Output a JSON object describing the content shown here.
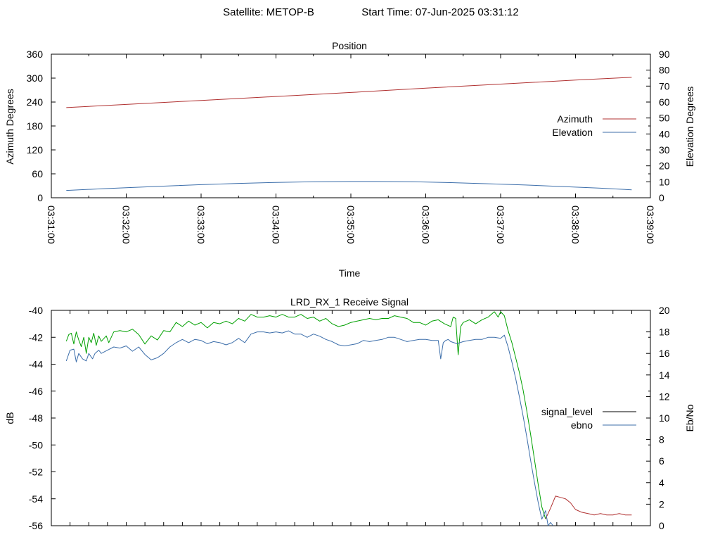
{
  "colors": {
    "azimuth": "#b03030",
    "elevation": "#3c6eaa",
    "signal_green": "#00a000",
    "signal_red": "#b03030",
    "ebno": "#3c6eaa",
    "legend_signal": "#000000",
    "axis": "#000000"
  },
  "header": {
    "satellite_label": "Satellite: METOP-B",
    "start_label": "Start Time: 07-Jun-2025 03:31:12"
  },
  "chart_data": [
    {
      "id": "position",
      "type": "line",
      "title": "Position",
      "xlabel": "Time",
      "ylabel": "Azimuth Degrees",
      "y2label": "Elevation Degrees",
      "xlim": [
        0,
        480
      ],
      "ylim": [
        0,
        360
      ],
      "y2lim": [
        0,
        90
      ],
      "x_ticks": [
        {
          "v": 0,
          "label": "03:31:00"
        },
        {
          "v": 60,
          "label": "03:32:00"
        },
        {
          "v": 120,
          "label": "03:33:00"
        },
        {
          "v": 180,
          "label": "03:34:00"
        },
        {
          "v": 240,
          "label": "03:35:00"
        },
        {
          "v": 300,
          "label": "03:36:00"
        },
        {
          "v": 360,
          "label": "03:37:00"
        },
        {
          "v": 420,
          "label": "03:38:00"
        },
        {
          "v": 480,
          "label": "03:39:00"
        }
      ],
      "y_ticks": [
        "0",
        "60",
        "120",
        "180",
        "240",
        "300",
        "360"
      ],
      "y_tick_values": [
        0,
        60,
        120,
        180,
        240,
        300,
        360
      ],
      "y2_ticks": [
        "0",
        "10",
        "20",
        "30",
        "40",
        "50",
        "60",
        "70",
        "80",
        "90"
      ],
      "y2_tick_values": [
        0,
        10,
        20,
        30,
        40,
        50,
        60,
        70,
        80,
        90
      ],
      "legend": [
        {
          "name": "Azimuth",
          "color_key": "azimuth"
        },
        {
          "name": "Elevation",
          "color_key": "elevation"
        }
      ],
      "legend_position": "right",
      "grid": false,
      "series": [
        {
          "name": "Azimuth",
          "axis": "y",
          "color_key": "azimuth",
          "x": [
            12,
            60,
            120,
            180,
            240,
            300,
            360,
            420,
            465
          ],
          "y": [
            226,
            234,
            244,
            254,
            264,
            275,
            285,
            295,
            302
          ]
        },
        {
          "name": "Elevation",
          "axis": "y2",
          "color_key": "elevation",
          "x": [
            12,
            40,
            60,
            90,
            120,
            150,
            180,
            210,
            240,
            260,
            290,
            320,
            350,
            380,
            410,
            440,
            465
          ],
          "y": [
            4.6,
            5.6,
            6.3,
            7.3,
            8.2,
            9.0,
            9.6,
            10.0,
            10.2,
            10.2,
            10.0,
            9.5,
            8.8,
            8.0,
            7.0,
            6.0,
            5.0
          ]
        }
      ]
    },
    {
      "id": "receive_signal",
      "type": "line",
      "title": "LRD_RX_1 Receive Signal",
      "xlabel": "",
      "ylabel": "dB",
      "y2label": "Eb/No",
      "xlim": [
        0,
        480
      ],
      "ylim": [
        -56,
        -40
      ],
      "y2lim": [
        0,
        20
      ],
      "x_tick_values": [
        0,
        15,
        30,
        45,
        60,
        75,
        90,
        105,
        120,
        135,
        150,
        165,
        180,
        195,
        210,
        225,
        240,
        255,
        270,
        285,
        300,
        315,
        330,
        345,
        360,
        375,
        390,
        405,
        420,
        435,
        450,
        465,
        480
      ],
      "y_ticks": [
        "-56",
        "-54",
        "-52",
        "-50",
        "-48",
        "-46",
        "-44",
        "-42",
        "-40"
      ],
      "y_tick_values": [
        -56,
        -54,
        -52,
        -50,
        -48,
        -46,
        -44,
        -42,
        -40
      ],
      "y2_ticks": [
        "0",
        "2",
        "4",
        "6",
        "8",
        "10",
        "12",
        "14",
        "16",
        "18",
        "20"
      ],
      "y2_tick_values": [
        0,
        2,
        4,
        6,
        8,
        10,
        12,
        14,
        16,
        18,
        20
      ],
      "legend": [
        {
          "name": "signal_level",
          "color_key": "legend_signal"
        },
        {
          "name": "ebno",
          "color_key": "ebno"
        }
      ],
      "legend_position": "right",
      "grid": false,
      "series": [
        {
          "name": "signal_level",
          "axis": "y",
          "color_key": "signal_green",
          "x": [
            12,
            14,
            16,
            18,
            20,
            22,
            24,
            26,
            28,
            30,
            32,
            34,
            36,
            38,
            40,
            42,
            44,
            46,
            48,
            50,
            55,
            60,
            65,
            70,
            75,
            80,
            85,
            90,
            95,
            100,
            105,
            110,
            115,
            120,
            125,
            130,
            135,
            140,
            145,
            150,
            155,
            160,
            165,
            170,
            175,
            180,
            185,
            190,
            195,
            200,
            205,
            210,
            215,
            220,
            225,
            230,
            235,
            240,
            245,
            250,
            255,
            260,
            265,
            270,
            275,
            280,
            285,
            290,
            295,
            300,
            305,
            310,
            315,
            320,
            322,
            324,
            326,
            328,
            330,
            335,
            340,
            345,
            350,
            355,
            358,
            360,
            363,
            366,
            369,
            372,
            375,
            378,
            381,
            384,
            387,
            390,
            393,
            396
          ],
          "y": [
            -42.3,
            -41.8,
            -41.7,
            -42.5,
            -41.6,
            -42.2,
            -42.7,
            -42.0,
            -43.2,
            -42.0,
            -42.4,
            -41.7,
            -42.6,
            -41.9,
            -42.3,
            -42.1,
            -41.9,
            -42.4,
            -42.0,
            -41.6,
            -41.5,
            -41.6,
            -41.4,
            -41.8,
            -42.5,
            -41.9,
            -42.2,
            -41.5,
            -41.6,
            -40.9,
            -41.2,
            -40.8,
            -41.1,
            -40.9,
            -41.3,
            -40.9,
            -41.0,
            -40.8,
            -41.0,
            -40.6,
            -40.8,
            -40.3,
            -40.5,
            -40.5,
            -40.4,
            -40.5,
            -40.3,
            -40.5,
            -40.5,
            -40.3,
            -40.6,
            -40.5,
            -40.8,
            -40.6,
            -41.0,
            -41.2,
            -41.1,
            -40.9,
            -40.8,
            -40.7,
            -40.6,
            -40.7,
            -40.6,
            -40.6,
            -40.4,
            -40.5,
            -40.6,
            -40.9,
            -40.9,
            -41.1,
            -40.8,
            -40.7,
            -41.0,
            -41.2,
            -40.5,
            -40.6,
            -43.3,
            -41.2,
            -40.9,
            -40.7,
            -41.0,
            -40.7,
            -40.5,
            -40.1,
            -40.5,
            -40.1,
            -40.4,
            -41.5,
            -42.4,
            -43.5,
            -44.6,
            -45.9,
            -47.5,
            -49.2,
            -51.0,
            -52.9,
            -54.6,
            -55.5
          ]
        },
        {
          "name": "signal_level_tail",
          "axis": "y",
          "color_key": "signal_red",
          "x": [
            396,
            400,
            404,
            408,
            412,
            416,
            420,
            425,
            430,
            435,
            440,
            445,
            450,
            455,
            460,
            465
          ],
          "y": [
            -55.5,
            -54.7,
            -53.8,
            -53.9,
            -54.0,
            -54.3,
            -54.8,
            -55.0,
            -55.1,
            -55.2,
            -55.1,
            -55.2,
            -55.2,
            -55.1,
            -55.2,
            -55.2
          ]
        },
        {
          "name": "ebno",
          "axis": "y2",
          "color_key": "ebno",
          "x": [
            12,
            15,
            18,
            20,
            22,
            25,
            28,
            30,
            33,
            35,
            38,
            40,
            45,
            50,
            55,
            60,
            65,
            70,
            75,
            80,
            85,
            90,
            95,
            100,
            105,
            110,
            115,
            120,
            125,
            130,
            135,
            140,
            145,
            150,
            155,
            160,
            165,
            170,
            175,
            180,
            185,
            190,
            195,
            200,
            205,
            210,
            215,
            220,
            225,
            230,
            235,
            240,
            245,
            250,
            255,
            260,
            265,
            270,
            275,
            280,
            285,
            290,
            295,
            300,
            305,
            310,
            312,
            314,
            316,
            318,
            320,
            325,
            330,
            335,
            340,
            345,
            350,
            355,
            360,
            363,
            366,
            369,
            372,
            375,
            378,
            381,
            384,
            387,
            390,
            393,
            396,
            398,
            400,
            402
          ],
          "y": [
            15.3,
            16.3,
            16.4,
            15.2,
            16.0,
            15.5,
            15.3,
            16.0,
            15.5,
            16.0,
            16.3,
            16.0,
            16.3,
            16.6,
            16.5,
            16.7,
            16.2,
            16.6,
            15.9,
            15.4,
            15.6,
            16.0,
            16.6,
            17.0,
            17.3,
            17.0,
            17.3,
            17.2,
            16.9,
            17.1,
            17.0,
            16.8,
            17.0,
            17.4,
            17.0,
            17.8,
            18.0,
            18.0,
            17.9,
            18.0,
            17.9,
            18.1,
            17.8,
            17.8,
            17.5,
            17.8,
            17.6,
            17.3,
            17.1,
            16.8,
            16.7,
            16.8,
            16.9,
            17.2,
            17.1,
            17.2,
            17.3,
            17.5,
            17.5,
            17.3,
            17.1,
            17.2,
            17.3,
            17.3,
            17.2,
            17.2,
            15.5,
            17.0,
            17.2,
            17.3,
            17.1,
            16.9,
            17.1,
            17.2,
            17.3,
            17.3,
            17.5,
            17.5,
            17.4,
            17.7,
            16.6,
            15.2,
            13.7,
            12.0,
            10.2,
            8.2,
            6.1,
            4.1,
            2.2,
            0.6,
            1.4,
            0.0,
            0.3,
            0.0
          ]
        }
      ]
    }
  ]
}
